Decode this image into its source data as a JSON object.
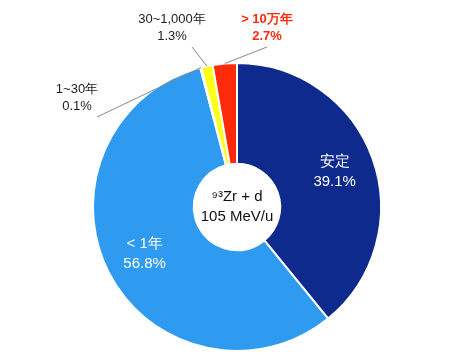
{
  "chart_data": {
    "type": "doughnut",
    "categories": [
      "安定",
      "< 1年",
      "1~30年",
      "30~1,000年",
      "> 10万年"
    ],
    "values": [
      39.1,
      56.8,
      0.1,
      1.3,
      2.7
    ],
    "value_labels": [
      "39.1%",
      "56.8%",
      "0.1%",
      "1.3%",
      "2.7%"
    ],
    "colors": [
      "#0d2a8c",
      "#2e9bf0",
      "#7fd05a",
      "#ffff1a",
      "#ff2a0a"
    ],
    "center_text": [
      "⁹³Zr + d",
      "105 MeV/u"
    ],
    "data_labels": true,
    "legend": false
  }
}
